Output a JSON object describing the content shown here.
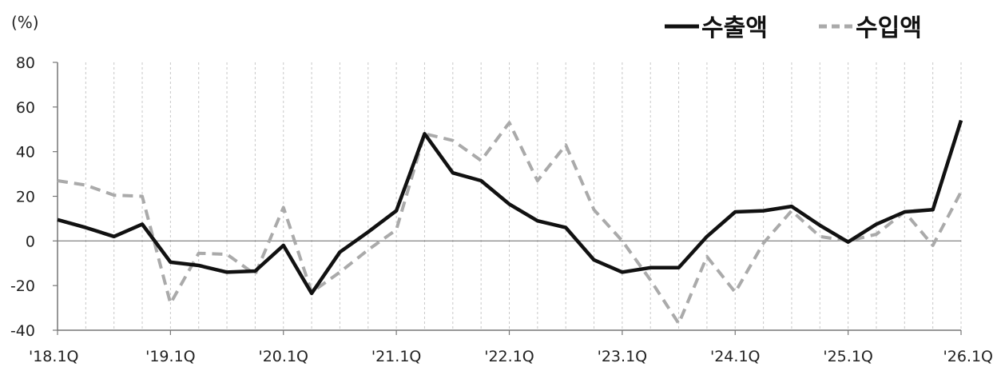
{
  "chart_data": {
    "type": "line",
    "unit": "(%)",
    "x": [
      "'18.1Q",
      "'18.2Q",
      "'18.3Q",
      "'18.4Q",
      "'19.1Q",
      "'19.2Q",
      "'19.3Q",
      "'19.4Q",
      "'20.1Q",
      "'20.2Q",
      "'20.3Q",
      "'20.4Q",
      "'21.1Q",
      "'21.2Q",
      "'21.3Q",
      "'21.4Q",
      "'22.1Q",
      "'22.2Q",
      "'22.3Q",
      "'22.4Q",
      "'23.1Q",
      "'23.2Q",
      "'23.3Q",
      "'23.4Q",
      "'24.1Q",
      "'24.2Q",
      "'24.3Q",
      "'24.4Q",
      "'25.1Q",
      "'25.2Q",
      "'25.3Q",
      "'25.4Q",
      "'26.1Q"
    ],
    "x_tick_labels": [
      "'18.1Q",
      "'19.1Q",
      "'20.1Q",
      "'21.1Q",
      "'22.1Q",
      "'23.1Q",
      "'24.1Q",
      "'25.1Q",
      "'26.1Q"
    ],
    "ylim": [
      -40,
      80
    ],
    "y_ticks": [
      80,
      60,
      40,
      20,
      0,
      -20,
      -40
    ],
    "grid": "vertical dashed",
    "legend_position": "top-right",
    "series": [
      {
        "name": "수출액",
        "color": "#111111",
        "style": "solid",
        "values": [
          9.5,
          6,
          2,
          7.5,
          -9.5,
          -11,
          -14,
          -13.5,
          -2,
          -23.5,
          -5,
          4,
          13.5,
          48,
          30.5,
          27,
          16.5,
          9,
          6,
          -8.5,
          -14,
          -12,
          -12,
          2,
          13,
          13.5,
          15.5,
          7,
          -0.5,
          7.5,
          13,
          14,
          54
        ]
      },
      {
        "name": "수입액",
        "color": "#aaaaaa",
        "style": "dashed",
        "values": [
          27,
          25,
          20.5,
          20,
          -28,
          -5.5,
          -6,
          -15,
          15,
          -23,
          -14,
          -4,
          5,
          48,
          45,
          36,
          53,
          27,
          43,
          14,
          0,
          -17.5,
          -37,
          -7,
          -23,
          -1,
          13.5,
          2,
          0,
          3,
          13,
          -2,
          22
        ]
      }
    ]
  }
}
